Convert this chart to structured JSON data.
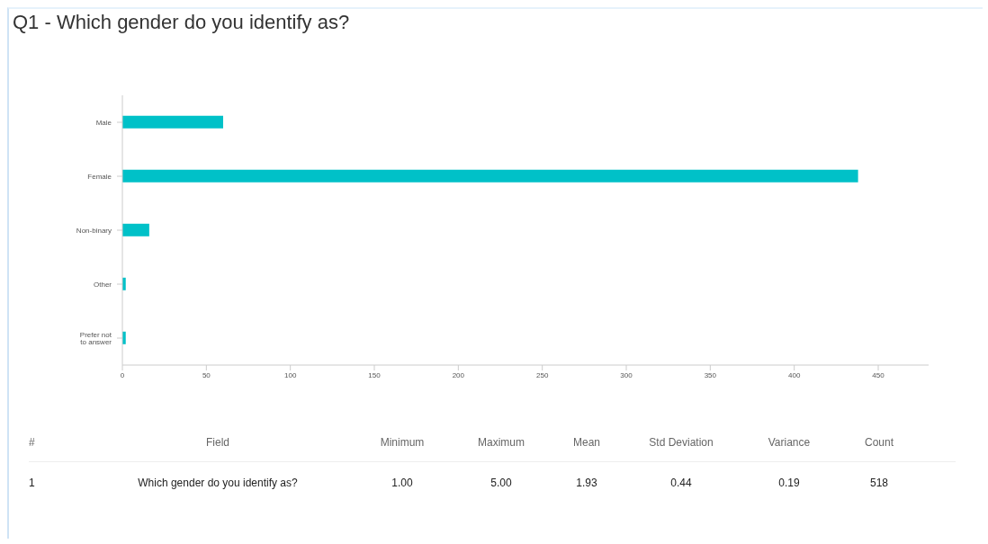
{
  "chart_data": {
    "type": "bar",
    "orientation": "horizontal",
    "title": "Q1 - Which gender do you identify as?",
    "categories": [
      "Male",
      "Female",
      "Non-binary",
      "Other",
      "Prefer not to answer"
    ],
    "values": [
      60,
      438,
      16,
      2,
      2
    ],
    "color": "#00c1c8",
    "xlim": [
      0,
      480
    ],
    "xticks": [
      0,
      50,
      100,
      150,
      200,
      250,
      300,
      350,
      400,
      450
    ],
    "grid": false,
    "annotations": [
      "#",
      "Field",
      "Minimum",
      "Maximum",
      "Mean",
      "Std Deviation",
      "Variance",
      "Count",
      "1",
      "Which gender do you identify as?",
      "1.00",
      "5.00",
      "1.93",
      "0.44",
      "0.19",
      "518"
    ]
  }
}
